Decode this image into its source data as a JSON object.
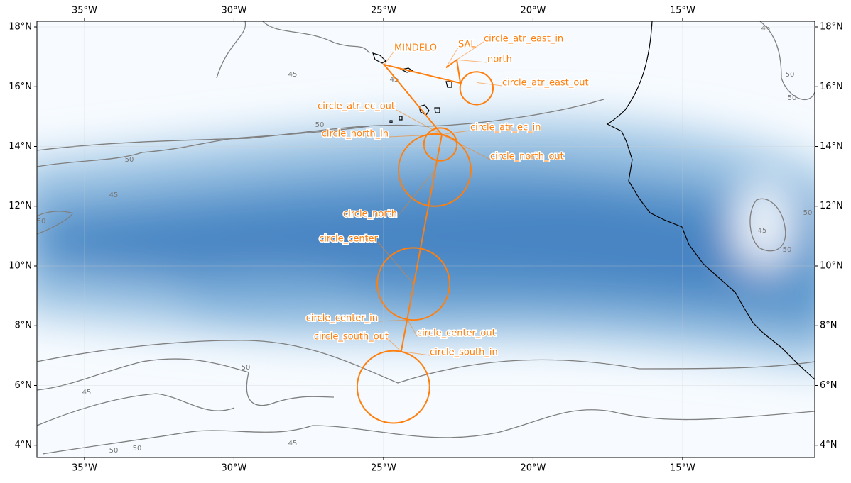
{
  "chart_data": {
    "type": "map",
    "xlim": [
      -36.59,
      -10.58
    ],
    "ylim": [
      3.59,
      18.19
    ],
    "xticks": [
      {
        "value": -35,
        "label": "35°W"
      },
      {
        "value": -30,
        "label": "30°W"
      },
      {
        "value": -25,
        "label": "25°W"
      },
      {
        "value": -20,
        "label": "20°W"
      },
      {
        "value": -15,
        "label": "15°W"
      }
    ],
    "yticks": [
      {
        "value": 4,
        "label": "4°N"
      },
      {
        "value": 6,
        "label": "6°N"
      },
      {
        "value": 8,
        "label": "8°N"
      },
      {
        "value": 10,
        "label": "10°N"
      },
      {
        "value": 12,
        "label": "12°N"
      },
      {
        "value": 14,
        "label": "14°N"
      },
      {
        "value": 16,
        "label": "16°N"
      },
      {
        "value": 18,
        "label": "18°N"
      }
    ],
    "grid": true,
    "color": "#ff7f0e",
    "track": {
      "lon": [
        -22.91,
        -22.55,
        -22.43,
        -24.98,
        -23.05,
        -24.41
      ],
      "lat": [
        16.64,
        16.9,
        16.12,
        16.74,
        14.4,
        7.14
      ]
    },
    "circles": [
      {
        "lon": -21.89,
        "lat": 15.95,
        "radius": 0.55
      },
      {
        "lon": -23.1,
        "lat": 14.07,
        "radius": 0.55
      },
      {
        "lon": -23.29,
        "lat": 13.21,
        "radius": 1.21
      },
      {
        "lon": -24.0,
        "lat": 9.4,
        "radius": 1.21
      },
      {
        "lon": -24.67,
        "lat": 5.95,
        "radius": 1.21
      }
    ],
    "points": [
      {
        "name": "MINDELO",
        "lon": -24.98,
        "lat": 16.74
      },
      {
        "name": "SAL",
        "lon": -22.91,
        "lat": 16.64
      },
      {
        "name": "circle_atr_east_in",
        "lon": -22.55,
        "lat": 16.9
      },
      {
        "name": "north",
        "lon": -22.55,
        "lat": 16.9
      },
      {
        "name": "circle_atr_east_out",
        "lon": -21.89,
        "lat": 16.14
      },
      {
        "name": "circle_atr_ec_out",
        "lon": -23.05,
        "lat": 14.4
      },
      {
        "name": "circle_atr_ec_in",
        "lon": -23.05,
        "lat": 14.4
      },
      {
        "name": "circle_north_in",
        "lon": -23.05,
        "lat": 14.4
      },
      {
        "name": "circle_north_out",
        "lon": -23.05,
        "lat": 14.4
      },
      {
        "name": "circle_north",
        "lon": -23.29,
        "lat": 13.21
      },
      {
        "name": "circle_center",
        "lon": -24.0,
        "lat": 9.4
      },
      {
        "name": "circle_center_in",
        "lon": -24.19,
        "lat": 8.19
      },
      {
        "name": "circle_center_out",
        "lon": -24.19,
        "lat": 8.19
      },
      {
        "name": "circle_south_out",
        "lon": -24.41,
        "lat": 7.14
      },
      {
        "name": "circle_south_in",
        "lon": -24.41,
        "lat": 7.14
      }
    ],
    "contour_labels": [
      45,
      50,
      50,
      45,
      50,
      50,
      45,
      45,
      50,
      45,
      50,
      50,
      45,
      50,
      50,
      45,
      50
    ]
  }
}
